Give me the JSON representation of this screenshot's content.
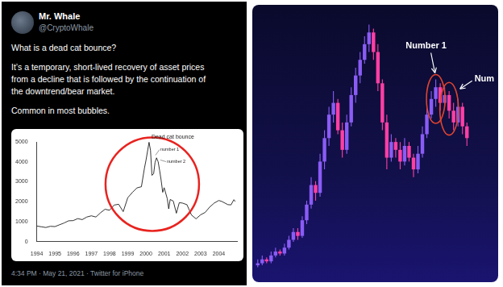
{
  "tweet": {
    "author": "Mr. Whale",
    "handle": "@CryptoWhale",
    "text": [
      [
        "What is a dead cat bounce?"
      ],
      [
        "It’s a temporary, short-lived recovery of asset prices",
        "from a decline that is followed by the continuation of",
        "the downtrend/bear market."
      ],
      [
        "Common in most bubbles."
      ]
    ],
    "footer": "4:34 PM · May 21, 2021 · Twitter for iPhone"
  },
  "chart_data": [
    {
      "type": "line",
      "annotations": [
        "Dead cat bounce",
        "number 1",
        "number 2"
      ],
      "x": [
        1994.0,
        1994.25,
        1994.5,
        1994.75,
        1995.0,
        1995.25,
        1995.5,
        1995.75,
        1996.0,
        1996.25,
        1996.5,
        1996.75,
        1997.0,
        1997.25,
        1997.5,
        1997.75,
        1998.0,
        1998.25,
        1998.5,
        1998.75,
        1999.0,
        1999.25,
        1999.5,
        1999.75,
        1999.92,
        2000.0,
        2000.17,
        2000.25,
        2000.33,
        2000.42,
        2000.5,
        2000.58,
        2000.67,
        2000.75,
        2000.83,
        2000.92,
        2001.0,
        2001.17,
        2001.25,
        2001.33,
        2001.5,
        2001.67,
        2001.83,
        2002.0,
        2002.25,
        2002.5,
        2002.75,
        2003.0,
        2003.25,
        2003.5,
        2003.75,
        2004.0,
        2004.17,
        2004.5,
        2004.67,
        2004.83,
        2004.9
      ],
      "values": [
        780,
        740,
        705,
        765,
        750,
        840,
        930,
        1040,
        1050,
        1150,
        1100,
        1230,
        1290,
        1230,
        1440,
        1620,
        1570,
        1830,
        1870,
        1500,
        2200,
        2460,
        2690,
        2750,
        3700,
        4070,
        4980,
        4570,
        3320,
        3400,
        3970,
        4200,
        4000,
        3570,
        3100,
        2470,
        2700,
        2150,
        1640,
        2110,
        2030,
        1420,
        1950,
        1930,
        1850,
        1330,
        1140,
        1340,
        1460,
        1730,
        1930,
        2060,
        2010,
        1850,
        1840,
        2100,
        2010
      ],
      "color": "#000000",
      "xlim": [
        1994,
        2005
      ],
      "xticks": [
        1994,
        1995,
        1996,
        1997,
        1998,
        1999,
        2000,
        2001,
        2002,
        2003,
        2004
      ],
      "ylim": [
        0,
        5000
      ],
      "yticks": [
        0,
        1000,
        2000,
        3000,
        4000,
        5000
      ],
      "grid": false
    },
    {
      "type": "candlestick",
      "annotations": [
        "Number 1",
        "Num"
      ],
      "open": [
        3.5,
        4,
        5,
        4.5,
        6,
        7,
        6.5,
        8,
        10,
        12,
        11,
        15,
        19,
        24,
        22,
        30,
        36,
        42,
        45,
        38,
        33,
        40,
        47,
        52,
        56,
        60,
        63,
        58,
        50,
        40,
        31,
        35,
        33,
        30,
        34,
        31,
        28,
        32,
        37,
        42,
        46,
        49,
        45,
        47,
        43,
        40,
        44,
        39
      ],
      "high": [
        5,
        6,
        5.5,
        7,
        8,
        7.5,
        9,
        11,
        13,
        13,
        16,
        20,
        26,
        25,
        32,
        38,
        44,
        48,
        46,
        40,
        42,
        49,
        54,
        58,
        62,
        65,
        64,
        60,
        51,
        42,
        37,
        36,
        35,
        36,
        35,
        32,
        34,
        39,
        44,
        48,
        51,
        50,
        49,
        48,
        45,
        46,
        45,
        40
      ],
      "low": [
        3,
        3.5,
        4,
        4,
        5.5,
        6,
        6,
        7.5,
        9.5,
        10,
        10.5,
        14,
        18,
        20,
        21,
        28,
        34,
        40,
        37,
        31,
        32,
        39,
        45,
        50,
        55,
        58,
        56,
        48,
        38,
        28,
        30,
        31,
        28,
        29,
        30,
        26,
        27,
        31,
        36,
        41,
        44,
        43,
        44,
        41,
        38,
        39,
        37,
        34
      ],
      "close": [
        4,
        5,
        4.5,
        6,
        7,
        6.5,
        8,
        10,
        12,
        11,
        15,
        19,
        24,
        22,
        30,
        36,
        42,
        45,
        38,
        33,
        40,
        47,
        52,
        56,
        60,
        63,
        58,
        50,
        40,
        31,
        35,
        33,
        30,
        34,
        31,
        28,
        32,
        37,
        42,
        46,
        49,
        45,
        47,
        43,
        40,
        44,
        39,
        36
      ],
      "colors": [
        "#8a5cf6",
        "#8a5cf6",
        "#ff3fa4",
        "#8a5cf6",
        "#8a5cf6",
        "#ff3fa4",
        "#8a5cf6",
        "#8a5cf6",
        "#8a5cf6",
        "#ff3fa4",
        "#8a5cf6",
        "#8a5cf6",
        "#8a5cf6",
        "#ff3fa4",
        "#8a5cf6",
        "#8a5cf6",
        "#8a5cf6",
        "#8a5cf6",
        "#ff3fa4",
        "#ff3fa4",
        "#8a5cf6",
        "#8a5cf6",
        "#8a5cf6",
        "#8a5cf6",
        "#8a5cf6",
        "#8a5cf6",
        "#ff3fa4",
        "#ff3fa4",
        "#ff3fa4",
        "#ff3fa4",
        "#8a5cf6",
        "#ff3fa4",
        "#ff3fa4",
        "#8a5cf6",
        "#ff3fa4",
        "#ff3fa4",
        "#8a5cf6",
        "#8a5cf6",
        "#8a5cf6",
        "#8a5cf6",
        "#8a5cf6",
        "#ff3fa4",
        "#8a5cf6",
        "#ff3fa4",
        "#ff3fa4",
        "#8a5cf6",
        "#ff3fa4",
        "#ff3fa4"
      ],
      "ylim": [
        0,
        68
      ],
      "tick_labels": false,
      "grid": false
    }
  ]
}
